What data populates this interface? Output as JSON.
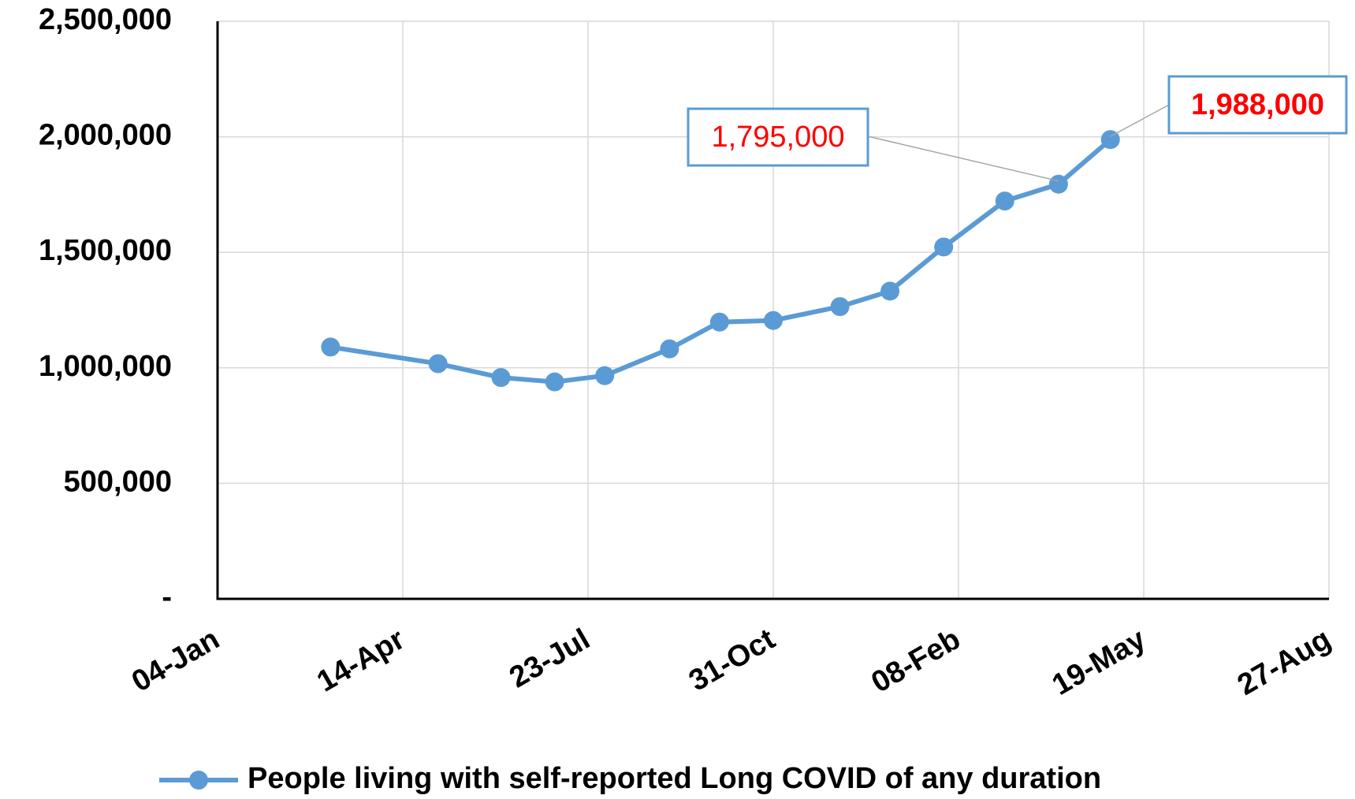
{
  "chart_data": {
    "type": "line",
    "x": [
      61,
      119,
      153,
      182,
      209,
      244,
      271,
      300,
      336,
      363,
      392,
      425,
      454,
      482
    ],
    "xlim": [
      0,
      600
    ],
    "xticks": [
      {
        "value": 0,
        "label": "04-Jan"
      },
      {
        "value": 100,
        "label": "14-Apr"
      },
      {
        "value": 200,
        "label": "23-Jul"
      },
      {
        "value": 300,
        "label": "31-Oct"
      },
      {
        "value": 400,
        "label": "08-Feb"
      },
      {
        "value": 500,
        "label": "19-May"
      },
      {
        "value": 600,
        "label": "27-Aug"
      }
    ],
    "ylim": [
      0,
      2500000
    ],
    "yticks": [
      {
        "value": 0,
        "label": "-"
      },
      {
        "value": 500000,
        "label": "500,000"
      },
      {
        "value": 1000000,
        "label": "1,000,000"
      },
      {
        "value": 1500000,
        "label": "1,500,000"
      },
      {
        "value": 2000000,
        "label": "2,000,000"
      },
      {
        "value": 2500000,
        "label": "2,500,000"
      }
    ],
    "grid": true,
    "legend": "bottom",
    "series": [
      {
        "name": "People living with self-reported Long COVID of any duration",
        "color": "#5b9bd5",
        "values": [
          1090000,
          1018000,
          958000,
          939000,
          966000,
          1082000,
          1198000,
          1205000,
          1265000,
          1332000,
          1523000,
          1722000,
          1795000,
          1988000
        ],
        "value_labels": [
          null,
          null,
          null,
          null,
          null,
          null,
          null,
          null,
          null,
          null,
          null,
          null,
          "1,795,000",
          "1,988,000"
        ]
      }
    ]
  }
}
